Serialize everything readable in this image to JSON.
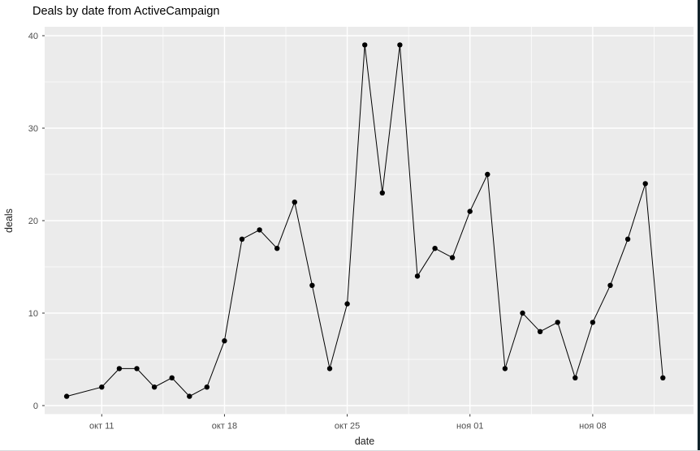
{
  "window": {
    "border_color": "#112129"
  },
  "chart_data": {
    "type": "line",
    "title": "Deals by date from ActiveCampaign",
    "xlabel": "date",
    "ylabel": "deals",
    "legend": "none",
    "grid": "on",
    "panel_bg": "#EBEBEB",
    "grid_color": "#FFFFFF",
    "line_color": "#000000",
    "point_color": "#000000",
    "tick_text_color": "#4D4D4D",
    "ylim": [
      0,
      40
    ],
    "y_major_ticks": [
      0,
      10,
      20,
      30,
      40
    ],
    "y_minor_ticks": [
      5,
      15,
      25,
      35
    ],
    "x_major_ticks": [
      {
        "label": "окт 11",
        "day": 2
      },
      {
        "label": "окт 18",
        "day": 9
      },
      {
        "label": "окт 25",
        "day": 16
      },
      {
        "label": "ноя 01",
        "day": 23
      },
      {
        "label": "ноя 08",
        "day": 30
      }
    ],
    "x_minor_tick_days": [
      5.5,
      12.5,
      19.5,
      26.5,
      33.5
    ],
    "points": [
      {
        "date": "окт 09",
        "day": 0,
        "deals": 1
      },
      {
        "date": "окт 11",
        "day": 2,
        "deals": 2
      },
      {
        "date": "окт 12",
        "day": 3,
        "deals": 4
      },
      {
        "date": "окт 13",
        "day": 4,
        "deals": 4
      },
      {
        "date": "окт 14",
        "day": 5,
        "deals": 2
      },
      {
        "date": "окт 15",
        "day": 6,
        "deals": 3
      },
      {
        "date": "окт 16",
        "day": 7,
        "deals": 1
      },
      {
        "date": "окт 17",
        "day": 8,
        "deals": 2
      },
      {
        "date": "окт 18",
        "day": 9,
        "deals": 7
      },
      {
        "date": "окт 19",
        "day": 10,
        "deals": 18
      },
      {
        "date": "окт 20",
        "day": 11,
        "deals": 19
      },
      {
        "date": "окт 21",
        "day": 12,
        "deals": 17
      },
      {
        "date": "окт 22",
        "day": 13,
        "deals": 22
      },
      {
        "date": "окт 23",
        "day": 14,
        "deals": 13
      },
      {
        "date": "окт 24",
        "day": 15,
        "deals": 4
      },
      {
        "date": "окт 25",
        "day": 16,
        "deals": 11
      },
      {
        "date": "окт 26",
        "day": 17,
        "deals": 39
      },
      {
        "date": "окт 27",
        "day": 18,
        "deals": 23
      },
      {
        "date": "окт 28",
        "day": 19,
        "deals": 39
      },
      {
        "date": "окт 29",
        "day": 20,
        "deals": 14
      },
      {
        "date": "окт 30",
        "day": 21,
        "deals": 17
      },
      {
        "date": "окт 31",
        "day": 22,
        "deals": 16
      },
      {
        "date": "ноя 01",
        "day": 23,
        "deals": 21
      },
      {
        "date": "ноя 02",
        "day": 24,
        "deals": 25
      },
      {
        "date": "ноя 03",
        "day": 25,
        "deals": 4
      },
      {
        "date": "ноя 04",
        "day": 26,
        "deals": 10
      },
      {
        "date": "ноя 05",
        "day": 27,
        "deals": 8
      },
      {
        "date": "ноя 06",
        "day": 28,
        "deals": 9
      },
      {
        "date": "ноя 07",
        "day": 29,
        "deals": 3
      },
      {
        "date": "ноя 08",
        "day": 30,
        "deals": 9
      },
      {
        "date": "ноя 09",
        "day": 31,
        "deals": 13
      },
      {
        "date": "ноя 10",
        "day": 32,
        "deals": 18
      },
      {
        "date": "ноя 11",
        "day": 33,
        "deals": 24
      },
      {
        "date": "ноя 12",
        "day": 34,
        "deals": 3
      }
    ]
  }
}
